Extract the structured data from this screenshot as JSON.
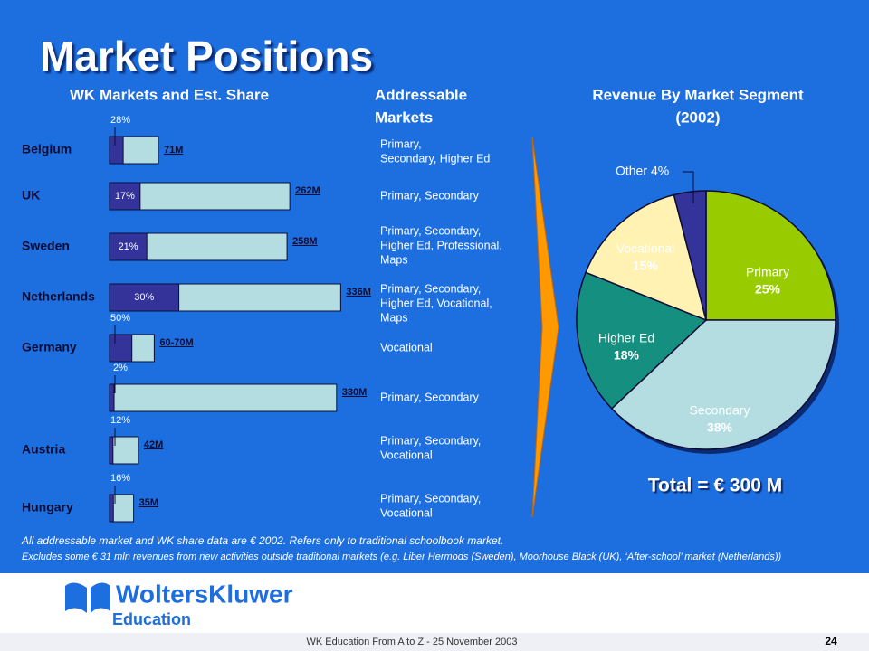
{
  "title": "Market Positions",
  "addressable": {
    "heading": [
      "Addressable",
      "Markets"
    ],
    "rows": [
      [
        "Primary,",
        "Secondary, Higher Ed"
      ],
      [
        "Primary, Secondary"
      ],
      [
        "Primary, Secondary,",
        "Higher Ed, Professional,",
        "Maps"
      ],
      [
        "Primary, Secondary,",
        "Higher Ed, Vocational,",
        "Maps"
      ],
      [
        "Vocational"
      ],
      [
        "Primary, Secondary"
      ],
      [
        "Primary, Secondary,",
        "Vocational"
      ],
      [
        "Primary, Secondary,",
        "Vocational"
      ]
    ]
  },
  "chart_data": [
    {
      "type": "bar",
      "title": "WK Markets and Est. Share",
      "categories": [
        "Belgium",
        "UK",
        "Sweden",
        "Netherlands",
        "Germany",
        null,
        "Austria",
        "Hungary"
      ],
      "series": [
        {
          "color": "#b3dde0",
          "values": [
            71,
            262,
            258,
            336,
            65,
            330,
            42,
            35
          ],
          "value_labels": [
            "71M",
            "262M",
            "258M",
            "336M",
            "60-70M",
            "330M",
            "42M",
            "35M"
          ]
        },
        {
          "color": "#333399",
          "values": [
            28,
            17,
            21,
            30,
            50,
            2,
            12,
            16
          ],
          "value_labels": [
            "28%",
            "17%",
            "21%",
            "30%",
            "50%",
            "2%",
            "12%",
            "16%"
          ]
        }
      ]
    },
    {
      "type": "pie",
      "title": [
        "Revenue By Market Segment",
        "(2002)"
      ],
      "categories": [
        "Primary",
        "Secondary",
        "Higher Ed",
        "Vocational",
        "Other"
      ],
      "values": [
        25,
        38,
        18,
        15,
        4
      ],
      "value_labels": [
        "25%",
        "38%",
        "18%",
        "15%",
        "4%"
      ],
      "colors": [
        "#99cc00",
        "#b3dde0",
        "#158f80",
        "#fff2b3",
        "#333399"
      ],
      "annotation": "Total = € 300 M"
    }
  ],
  "footnotes": [
    "All addressable market and WK share data are € 2002. Refers only to traditional schoolbook market.",
    "Excludes some € 31 mln revenues from new activities outside traditional markets (e.g. Liber Hermods (Sweden), Moorhouse Black (UK), ‘After-school’ market (Netherlands))"
  ],
  "logo": {
    "brand": "WoltersKluwer",
    "unit": "Education"
  },
  "footer": "WK Education From A to Z - 25 November 2003",
  "page": "24"
}
